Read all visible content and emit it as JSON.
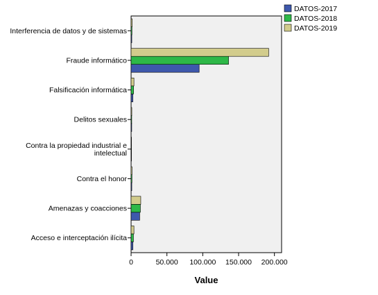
{
  "chart_data": {
    "type": "bar",
    "orientation": "horizontal",
    "title": "",
    "xlabel": "Value",
    "ylabel": "",
    "xlim": [
      0,
      210000
    ],
    "x_ticks": [
      0,
      50000,
      100000,
      150000,
      200000
    ],
    "x_tick_labels": [
      "0",
      "50.000",
      "100.000",
      "150.000",
      "200.000"
    ],
    "grid": false,
    "legend_position": "top-right",
    "categories": [
      [
        "Interferencia de datos y de sistemas"
      ],
      [
        "Fraude informático"
      ],
      [
        "Falsificación informática"
      ],
      [
        "Delitos sexuales"
      ],
      [
        "Contra la propiedad industrial e",
        "intelectual"
      ],
      [
        "Contra el honor"
      ],
      [
        "Amenazas y coacciones"
      ],
      [
        "Acceso e interceptación ilícita"
      ]
    ],
    "series": [
      {
        "name": "DATOS-2017",
        "color": "#3e58ac",
        "values": [
          1000,
          95000,
          2500,
          900,
          200,
          1000,
          12000,
          2500
        ]
      },
      {
        "name": "DATOS-2018",
        "color": "#2eb848",
        "values": [
          1200,
          136000,
          3500,
          900,
          200,
          1200,
          13000,
          3300
        ]
      },
      {
        "name": "DATOS-2019",
        "color": "#d2cc8c",
        "values": [
          1500,
          192000,
          4000,
          1000,
          300,
          1300,
          13500,
          4000
        ]
      }
    ]
  }
}
